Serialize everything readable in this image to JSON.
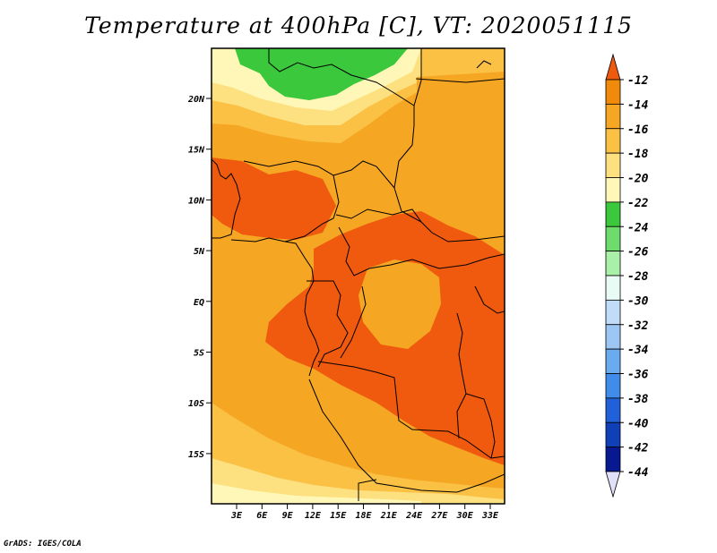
{
  "title": "Temperature at 400hPa [C], VT: 2020051115",
  "credit": "GrADS: IGES/COLA",
  "map": {
    "lat_labels": [
      "20N",
      "15N",
      "10N",
      "5N",
      "EQ",
      "5S",
      "10S",
      "15S"
    ],
    "lon_labels": [
      "3E",
      "6E",
      "9E",
      "12E",
      "15E",
      "18E",
      "21E",
      "24E",
      "27E",
      "30E",
      "33E"
    ]
  },
  "colorbar": {
    "labels": [
      "-12",
      "-14",
      "-16",
      "-18",
      "-20",
      "-22",
      "-24",
      "-26",
      "-28",
      "-30",
      "-32",
      "-34",
      "-36",
      "-38",
      "-40",
      "-42",
      "-44"
    ],
    "colors": [
      "#f05a0f",
      "#f08a0a",
      "#f5a623",
      "#fbc145",
      "#fde080",
      "#fff7b8",
      "#3cc83c",
      "#6ddc6d",
      "#a9f0a9",
      "#e8fbf5",
      "#c0dcf8",
      "#9cc6f3",
      "#6aabf0",
      "#3f8ceb",
      "#2060d8",
      "#1040b8",
      "#081890",
      "#e0e0f8"
    ]
  }
}
